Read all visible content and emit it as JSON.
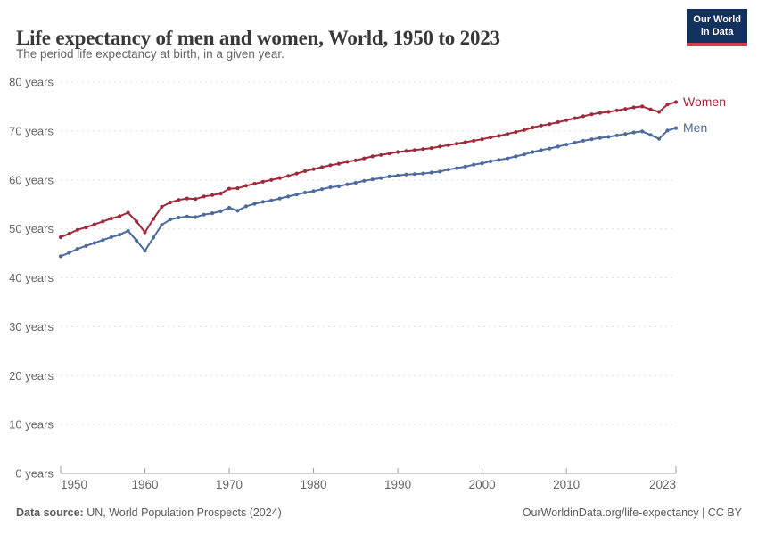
{
  "header": {
    "title": "Life expectancy of men and women, World, 1950 to 2023",
    "subtitle": "The period life expectancy at birth, in a given year.",
    "logo": {
      "line1": "Our World",
      "line2": "in Data"
    }
  },
  "footer": {
    "source_label": "Data source:",
    "source_text": " UN, World Population Prospects (2024)",
    "rights": "OurWorldinData.org/life-expectancy | CC BY"
  },
  "colors": {
    "women": "#9d2a3b",
    "men": "#4c6a9c",
    "grid": "#dddddd",
    "axis": "#9c9c9c",
    "tick_label": "#666666",
    "logo_bg": "#12315f",
    "logo_accent": "#d73c4e"
  },
  "chart_data": {
    "type": "line",
    "title": "Life expectancy of men and women, World, 1950 to 2023",
    "subtitle": "The period life expectancy at birth, in a given year.",
    "xlabel": "",
    "ylabel": "years",
    "xlim": [
      1950,
      2023
    ],
    "ylim": [
      0,
      80
    ],
    "grid": "horizontal-dashed",
    "legend": "end-of-line-labels",
    "yticks": [
      0,
      10,
      20,
      30,
      40,
      50,
      60,
      70,
      80
    ],
    "ytick_labels": [
      "0 years",
      "10 years",
      "20 years",
      "30 years",
      "40 years",
      "50 years",
      "60 years",
      "70 years",
      "80 years"
    ],
    "xticks": [
      1950,
      1960,
      1970,
      1980,
      1990,
      2000,
      2010,
      2023
    ],
    "xtick_labels": [
      "1950",
      "1960",
      "1970",
      "1980",
      "1990",
      "2000",
      "2010",
      "2023"
    ],
    "x": [
      1950,
      1951,
      1952,
      1953,
      1954,
      1955,
      1956,
      1957,
      1958,
      1959,
      1960,
      1961,
      1962,
      1963,
      1964,
      1965,
      1966,
      1967,
      1968,
      1969,
      1970,
      1971,
      1972,
      1973,
      1974,
      1975,
      1976,
      1977,
      1978,
      1979,
      1980,
      1981,
      1982,
      1983,
      1984,
      1985,
      1986,
      1987,
      1988,
      1989,
      1990,
      1991,
      1992,
      1993,
      1994,
      1995,
      1996,
      1997,
      1998,
      1999,
      2000,
      2001,
      2002,
      2003,
      2004,
      2005,
      2006,
      2007,
      2008,
      2009,
      2010,
      2011,
      2012,
      2013,
      2014,
      2015,
      2016,
      2017,
      2018,
      2019,
      2020,
      2021,
      2022,
      2023
    ],
    "series": [
      {
        "name": "Women",
        "color": "#9d2a3b",
        "values": [
          48.3,
          49.0,
          49.8,
          50.3,
          50.9,
          51.5,
          52.1,
          52.6,
          53.3,
          51.5,
          49.3,
          52.0,
          54.5,
          55.4,
          55.9,
          56.2,
          56.1,
          56.6,
          56.9,
          57.2,
          58.2,
          58.3,
          58.8,
          59.2,
          59.6,
          60.0,
          60.4,
          60.8,
          61.3,
          61.8,
          62.2,
          62.6,
          63.0,
          63.3,
          63.7,
          64.0,
          64.4,
          64.8,
          65.1,
          65.4,
          65.7,
          65.9,
          66.1,
          66.3,
          66.5,
          66.8,
          67.1,
          67.4,
          67.7,
          68.0,
          68.3,
          68.7,
          69.0,
          69.4,
          69.8,
          70.2,
          70.7,
          71.1,
          71.4,
          71.8,
          72.2,
          72.6,
          73.0,
          73.4,
          73.7,
          73.9,
          74.2,
          74.5,
          74.8,
          75.0,
          74.4,
          73.9,
          75.4,
          75.9
        ]
      },
      {
        "name": "Men",
        "color": "#4c6a9c",
        "values": [
          44.4,
          45.1,
          45.9,
          46.5,
          47.1,
          47.7,
          48.3,
          48.8,
          49.6,
          47.6,
          45.5,
          48.2,
          50.8,
          51.9,
          52.3,
          52.5,
          52.4,
          52.9,
          53.2,
          53.6,
          54.3,
          53.7,
          54.6,
          55.1,
          55.5,
          55.8,
          56.2,
          56.6,
          57.0,
          57.4,
          57.7,
          58.1,
          58.5,
          58.7,
          59.1,
          59.4,
          59.8,
          60.1,
          60.4,
          60.7,
          60.9,
          61.1,
          61.2,
          61.3,
          61.5,
          61.7,
          62.1,
          62.4,
          62.7,
          63.1,
          63.4,
          63.8,
          64.1,
          64.4,
          64.8,
          65.2,
          65.7,
          66.1,
          66.4,
          66.8,
          67.2,
          67.6,
          68.0,
          68.3,
          68.6,
          68.8,
          69.1,
          69.4,
          69.7,
          69.9,
          69.2,
          68.4,
          70.1,
          70.6
        ]
      }
    ]
  }
}
